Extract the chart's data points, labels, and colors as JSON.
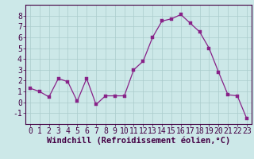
{
  "x": [
    0,
    1,
    2,
    3,
    4,
    5,
    6,
    7,
    8,
    9,
    10,
    11,
    12,
    13,
    14,
    15,
    16,
    17,
    18,
    19,
    20,
    21,
    22,
    23
  ],
  "y": [
    1.3,
    1.0,
    0.5,
    2.2,
    1.9,
    0.1,
    2.2,
    -0.2,
    0.6,
    0.6,
    0.6,
    3.0,
    3.8,
    6.0,
    7.5,
    7.7,
    8.1,
    7.3,
    6.5,
    5.0,
    2.8,
    0.7,
    0.6,
    -1.5
  ],
  "line_color": "#882288",
  "marker_color": "#882288",
  "bg_color": "#cce8e8",
  "grid_color": "#aacccc",
  "xlabel": "Windchill (Refroidissement éolien,°C)",
  "xlim": [
    -0.5,
    23.5
  ],
  "ylim": [
    -2,
    9
  ],
  "yticks": [
    -1,
    0,
    1,
    2,
    3,
    4,
    5,
    6,
    7,
    8
  ],
  "xticks": [
    0,
    1,
    2,
    3,
    4,
    5,
    6,
    7,
    8,
    9,
    10,
    11,
    12,
    13,
    14,
    15,
    16,
    17,
    18,
    19,
    20,
    21,
    22,
    23
  ],
  "xlabel_fontsize": 7.5,
  "tick_fontsize": 7,
  "marker_size": 2.5,
  "line_width": 0.9
}
